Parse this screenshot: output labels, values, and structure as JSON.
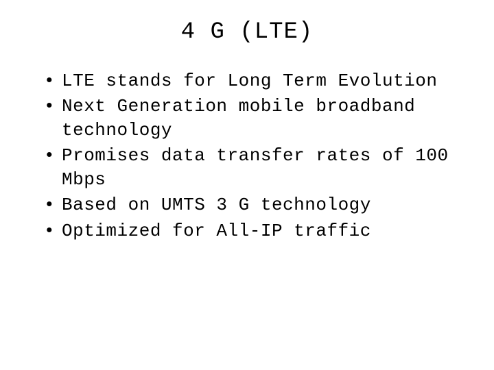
{
  "slide": {
    "title": "4 G (LTE)",
    "title_fontsize": 34,
    "title_color": "#000000",
    "background_color": "#ffffff",
    "text_color": "#000000",
    "body_fontsize": 26,
    "font_family": "monospace",
    "bullets": [
      {
        "text": "LTE stands for Long Term Evolution"
      },
      {
        "text": "Next Generation mobile broadband technology"
      },
      {
        "text": "Promises data transfer rates of 100 Mbps"
      },
      {
        "text": "Based on UMTS 3 G technology"
      },
      {
        "text": "Optimized for All-IP traffic"
      }
    ]
  }
}
